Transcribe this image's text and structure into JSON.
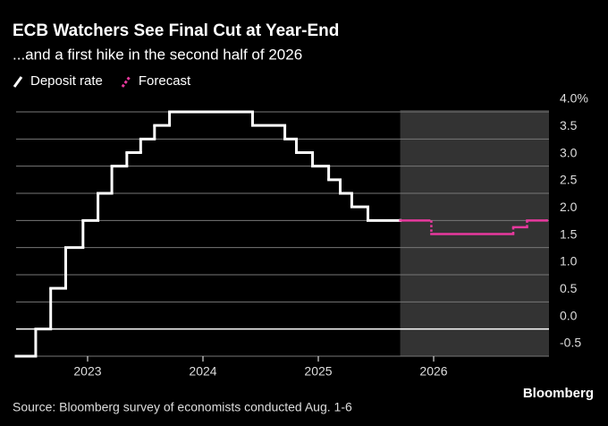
{
  "chart_data": {
    "type": "step",
    "title": "ECB Watchers See Final Cut at Year-End",
    "subtitle": "...and a first hike in the second half of 2026",
    "source": "Source: Bloomberg survey of economists conducted Aug. 1-6",
    "brand": "Bloomberg",
    "series": [
      {
        "name": "Deposit rate",
        "color": "#ffffff",
        "dashed": false,
        "x": [
          2022.38,
          2022.55,
          2022.68,
          2022.81,
          2022.96,
          2023.09,
          2023.21,
          2023.34,
          2023.46,
          2023.58,
          2023.71,
          2024.43,
          2024.71,
          2024.81,
          2024.95,
          2025.09,
          2025.19,
          2025.29,
          2025.43,
          2025.71
        ],
        "values": [
          -0.5,
          0,
          0.75,
          1.5,
          2.0,
          2.5,
          3.0,
          3.25,
          3.5,
          3.75,
          4.0,
          3.75,
          3.5,
          3.25,
          3.0,
          2.75,
          2.5,
          2.25,
          2.0,
          2.0
        ]
      },
      {
        "name": "Forecast",
        "color": "#e8399e",
        "dashed": true,
        "x": [
          2025.71,
          2025.98,
          2026.69,
          2026.81,
          2026.98
        ],
        "values": [
          2.0,
          1.75,
          1.875,
          2.0,
          2.0
        ]
      }
    ],
    "xlim": [
      2022.38,
      2027.0
    ],
    "xticks": [
      2023,
      2024,
      2025,
      2026
    ],
    "ylim": [
      -0.5,
      4.0
    ],
    "yticks": [
      -0.5,
      {
        "value": 0,
        "label": "0.0"
      },
      0.5,
      {
        "value": 1,
        "label": "1.0"
      },
      1.5,
      {
        "value": 2,
        "label": "2.0"
      },
      2.5,
      {
        "value": 3,
        "label": "3.0"
      },
      3.5,
      {
        "value": 4,
        "label": "4.0%"
      }
    ],
    "grid": true,
    "forecast_shading": true
  }
}
